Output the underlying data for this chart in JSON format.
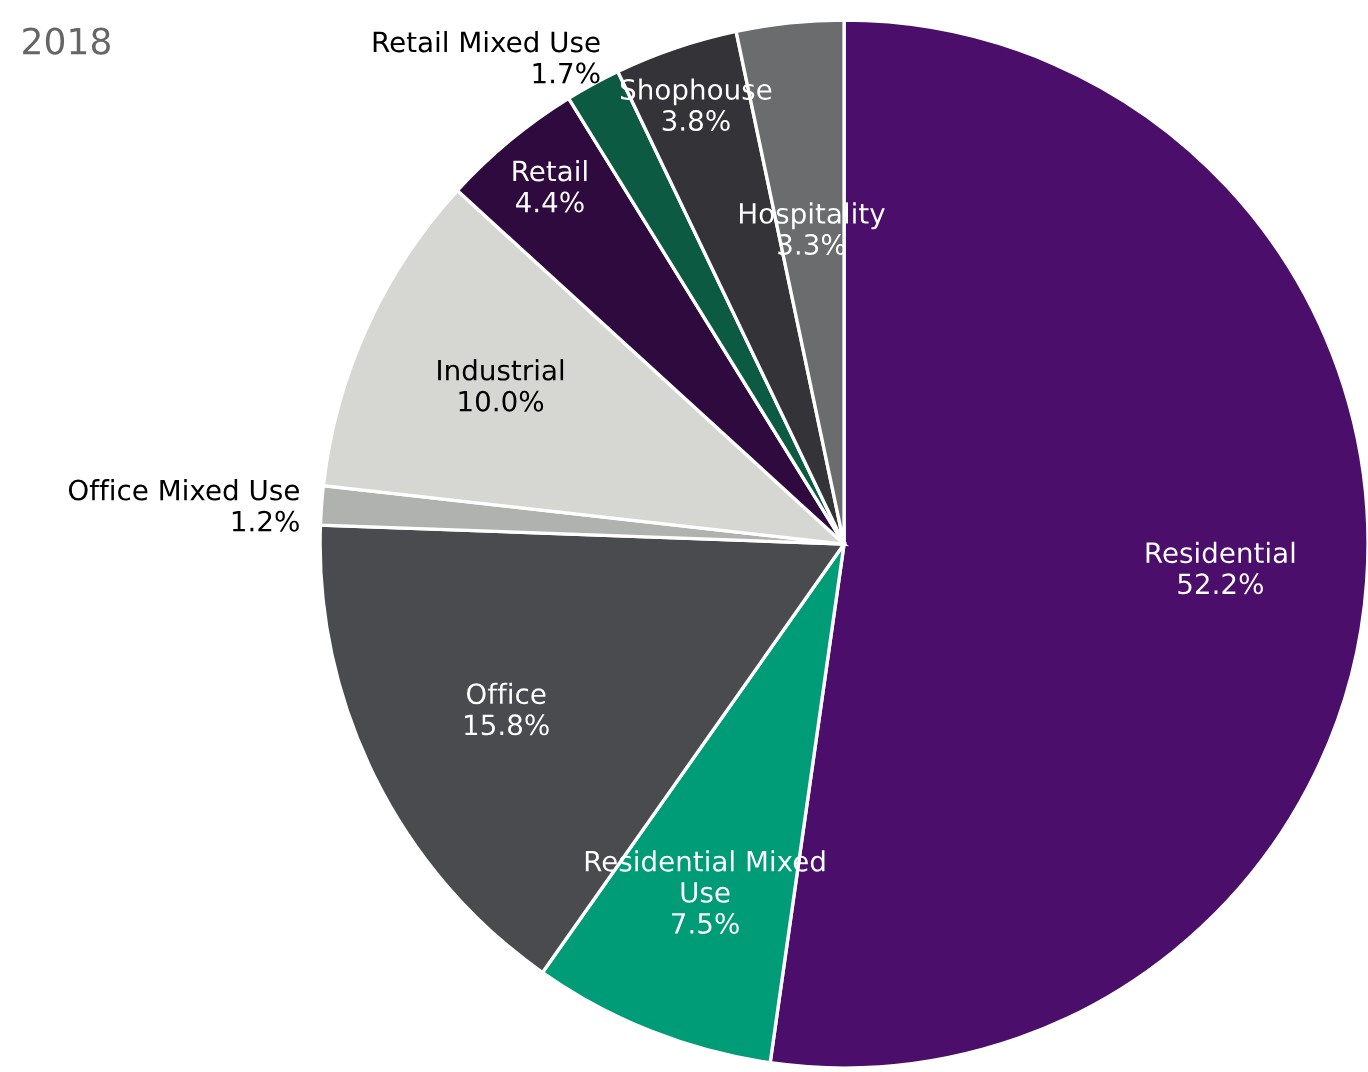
{
  "chart_data": {
    "type": "pie",
    "title": "2018",
    "categories": [
      "Residential",
      "Residential Mixed Use",
      "Office",
      "Office Mixed Use",
      "Industrial",
      "Retail",
      "Retail Mixed Use",
      "Shophouse",
      "Hospitality"
    ],
    "values": [
      52.2,
      7.5,
      15.8,
      1.2,
      10.0,
      4.4,
      1.7,
      3.8,
      3.3
    ],
    "value_labels": [
      "52.2%",
      "7.5%",
      "15.8%",
      "1.2%",
      "10.0%",
      "4.4%",
      "1.7%",
      "3.8%",
      "3.3%"
    ],
    "colors": [
      "#4b0f6b",
      "#009b77",
      "#4a4b4f",
      "#b0b2b0",
      "#d6d6d2",
      "#2e0a3e",
      "#0d5a43",
      "#333338",
      "#6b6c6e"
    ]
  }
}
